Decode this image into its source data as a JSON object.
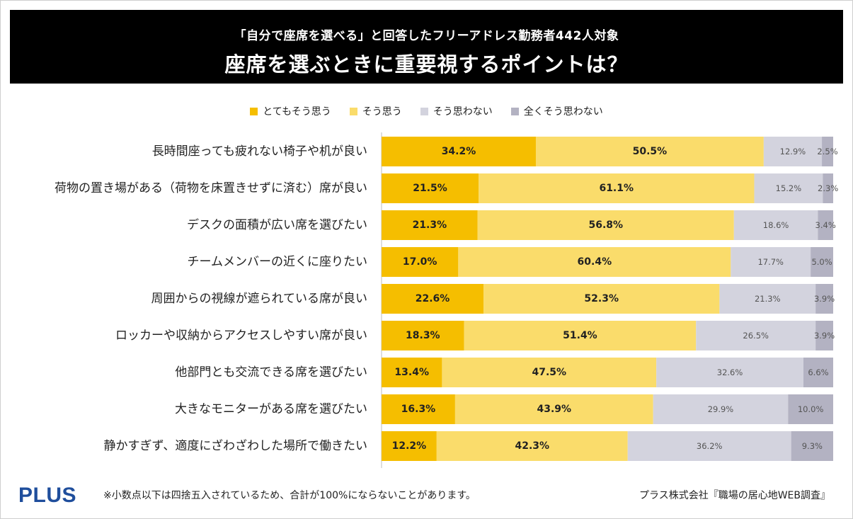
{
  "header": {
    "subtitle": "「自分で座席を選べる」と回答したフリーアドレス勤務者442人対象",
    "title": "座席を選ぶときに重要視するポイントは？"
  },
  "colors": {
    "header_bg": "#000000",
    "series": [
      "#F5BE00",
      "#FADC6B",
      "#D3D3DE",
      "#B3B2C2"
    ]
  },
  "chart_data": {
    "type": "bar",
    "orientation": "horizontal",
    "stacked": "100%",
    "legend_position": "top-center",
    "categories": [
      "長時間座っても疲れない椅子や机が良い",
      "荷物の置き場がある（荷物を床置きせずに済む）席が良い",
      "デスクの面積が広い席を選びたい",
      "チームメンバーの近くに座りたい",
      "周囲からの視線が遮られている席が良い",
      "ロッカーや収納からアクセスしやすい席が良い",
      "他部門とも交流できる席を選びたい",
      "大きなモニターがある席を選びたい",
      "静かすぎず、適度にざわざわした場所で働きたい"
    ],
    "series": [
      {
        "name": "とてもそう思う",
        "values": [
          34.2,
          21.5,
          21.3,
          17.0,
          22.6,
          18.3,
          13.4,
          16.3,
          12.2
        ]
      },
      {
        "name": "そう思う",
        "values": [
          50.5,
          61.1,
          56.8,
          60.4,
          52.3,
          51.4,
          47.5,
          43.9,
          42.3
        ]
      },
      {
        "name": "そう思わない",
        "values": [
          12.9,
          15.2,
          18.6,
          17.7,
          21.3,
          26.5,
          32.6,
          29.9,
          36.2
        ]
      },
      {
        "name": "全くそう思わない",
        "values": [
          2.5,
          2.3,
          3.4,
          5.0,
          3.9,
          3.9,
          6.6,
          10.0,
          9.3
        ]
      }
    ]
  },
  "footer": {
    "logo": "PLUS",
    "footnote": "※小数点以下は四捨五入されているため、合計が100%にならないことがあります。",
    "source": "プラス株式会社『職場の居心地WEB調査』"
  }
}
